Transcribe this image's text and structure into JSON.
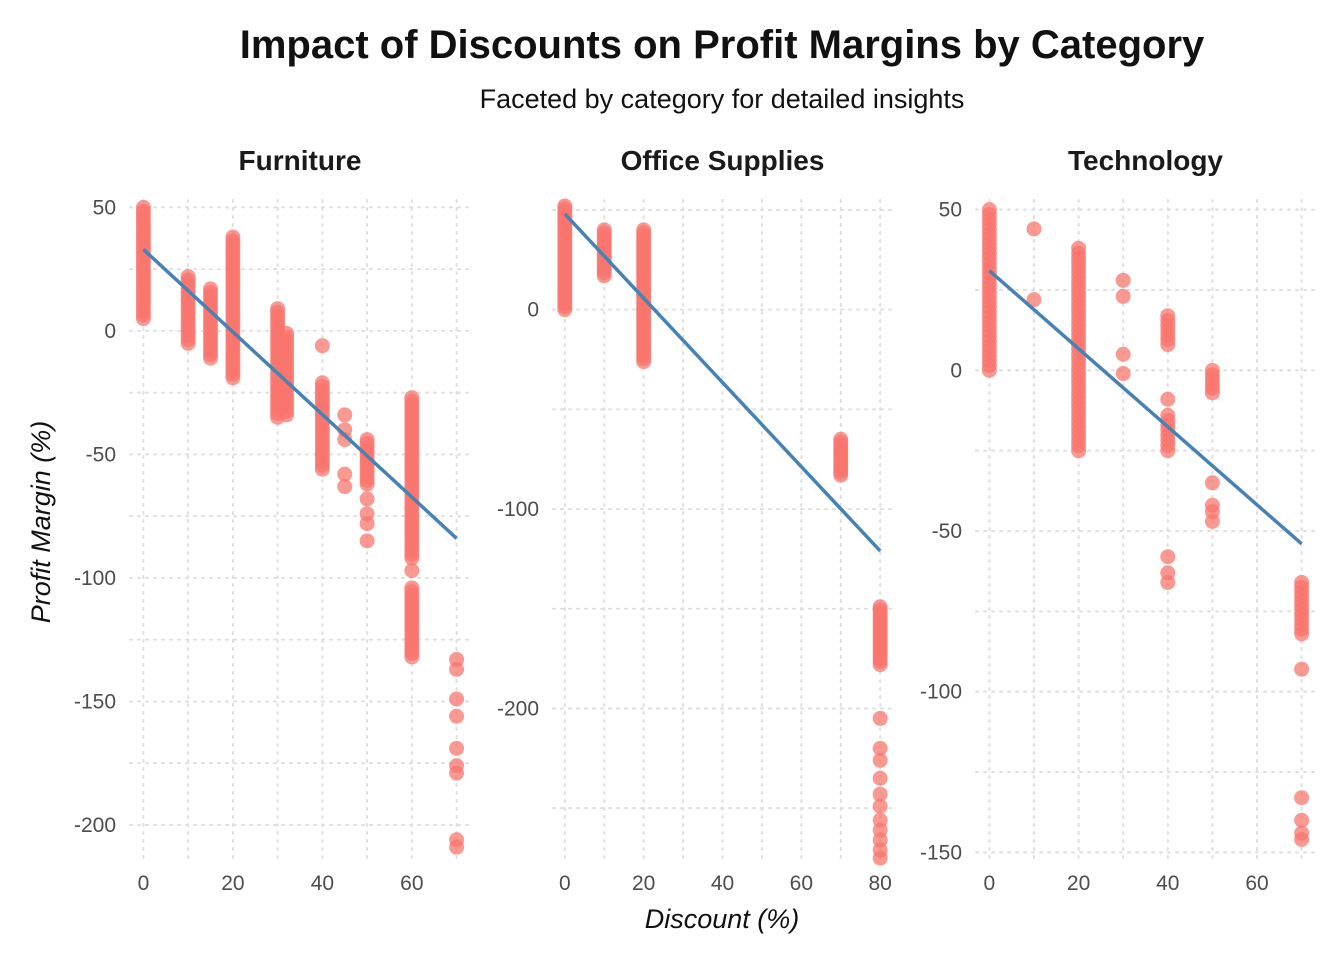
{
  "chart_data": {
    "type": "scatter",
    "title": "Impact of Discounts on Profit Margins by Category",
    "subtitle": "Faceted by category for detailed insights",
    "xlabel": "Discount (%)",
    "ylabel": "Profit Margin (%)",
    "grid": true,
    "legend": "none",
    "point_color": "#f8766d",
    "trend_color": "#4682b4",
    "facets": [
      {
        "name": "Furniture",
        "xlim": [
          -3,
          73
        ],
        "ylim": [
          -215,
          53
        ],
        "xticks": [
          0,
          20,
          40,
          60
        ],
        "yticks": [
          50,
          0,
          -50,
          -100,
          -150,
          -200
        ],
        "trend": [
          [
            0,
            33
          ],
          [
            70,
            -84
          ]
        ],
        "columns": [
          {
            "x": 0,
            "ymin": 5,
            "ymax": 50
          },
          {
            "x": 10,
            "ymin": -5,
            "ymax": 22
          },
          {
            "x": 15,
            "ymin": -11,
            "ymax": 17
          },
          {
            "x": 20,
            "ymin": -19,
            "ymax": 38
          },
          {
            "x": 30,
            "ymin": -35,
            "ymax": 9
          },
          {
            "x": 32,
            "ymin": -34,
            "ymax": -1
          },
          {
            "x": 40,
            "ymin": -56,
            "ymax": -21
          },
          {
            "x": 40,
            "values": [
              -6
            ]
          },
          {
            "x": 45,
            "values": [
              -34,
              -40,
              -44,
              -58,
              -63
            ]
          },
          {
            "x": 50,
            "ymin": -62,
            "ymax": -44
          },
          {
            "x": 50,
            "values": [
              -68,
              -74,
              -78,
              -85
            ]
          },
          {
            "x": 60,
            "ymin": -92,
            "ymax": -27
          },
          {
            "x": 60,
            "ymin": -132,
            "ymax": -104
          },
          {
            "x": 60,
            "values": [
              -97
            ]
          },
          {
            "x": 70,
            "values": [
              -133,
              -137,
              -149,
              -156,
              -169,
              -176,
              -179,
              -206,
              -209
            ]
          }
        ]
      },
      {
        "name": "Office Supplies",
        "xlim": [
          -3,
          83
        ],
        "ylim": [
          -277,
          55
        ],
        "xticks": [
          0,
          20,
          40,
          60,
          80
        ],
        "yticks": [
          0,
          -100,
          -200
        ],
        "trend": [
          [
            0,
            48
          ],
          [
            80,
            -121
          ]
        ],
        "columns": [
          {
            "x": 0,
            "ymin": 0,
            "ymax": 52
          },
          {
            "x": 10,
            "ymin": 17,
            "ymax": 40
          },
          {
            "x": 20,
            "ymin": -26,
            "ymax": 40
          },
          {
            "x": 70,
            "ymin": -83,
            "ymax": -65
          },
          {
            "x": 80,
            "ymin": -178,
            "ymax": -149
          },
          {
            "x": 80,
            "values": [
              -205,
              -220,
              -226,
              -235,
              -243,
              -249,
              -256,
              -261,
              -266,
              -271,
              -275
            ]
          }
        ]
      },
      {
        "name": "Technology",
        "xlim": [
          -3,
          73
        ],
        "ylim": [
          -153,
          53
        ],
        "xticks": [
          0,
          20,
          40,
          60
        ],
        "yticks": [
          50,
          0,
          -50,
          -100,
          -150
        ],
        "trend": [
          [
            0,
            31
          ],
          [
            70,
            -54
          ]
        ],
        "columns": [
          {
            "x": 0,
            "ymin": 0,
            "ymax": 50
          },
          {
            "x": 10,
            "values": [
              22,
              44
            ]
          },
          {
            "x": 20,
            "ymin": -25,
            "ymax": 38
          },
          {
            "x": 30,
            "values": [
              28,
              23,
              5,
              -1
            ]
          },
          {
            "x": 40,
            "ymin": -25,
            "ymax": -14
          },
          {
            "x": 40,
            "ymin": 8,
            "ymax": 17
          },
          {
            "x": 40,
            "values": [
              -9,
              -58,
              -63,
              -66
            ]
          },
          {
            "x": 50,
            "ymin": -7,
            "ymax": 0
          },
          {
            "x": 50,
            "values": [
              -35,
              -42,
              -44,
              -47
            ]
          },
          {
            "x": 70,
            "ymin": -82,
            "ymax": -66
          },
          {
            "x": 70,
            "values": [
              -93,
              -133,
              -140,
              -144,
              -146
            ]
          }
        ]
      }
    ]
  }
}
